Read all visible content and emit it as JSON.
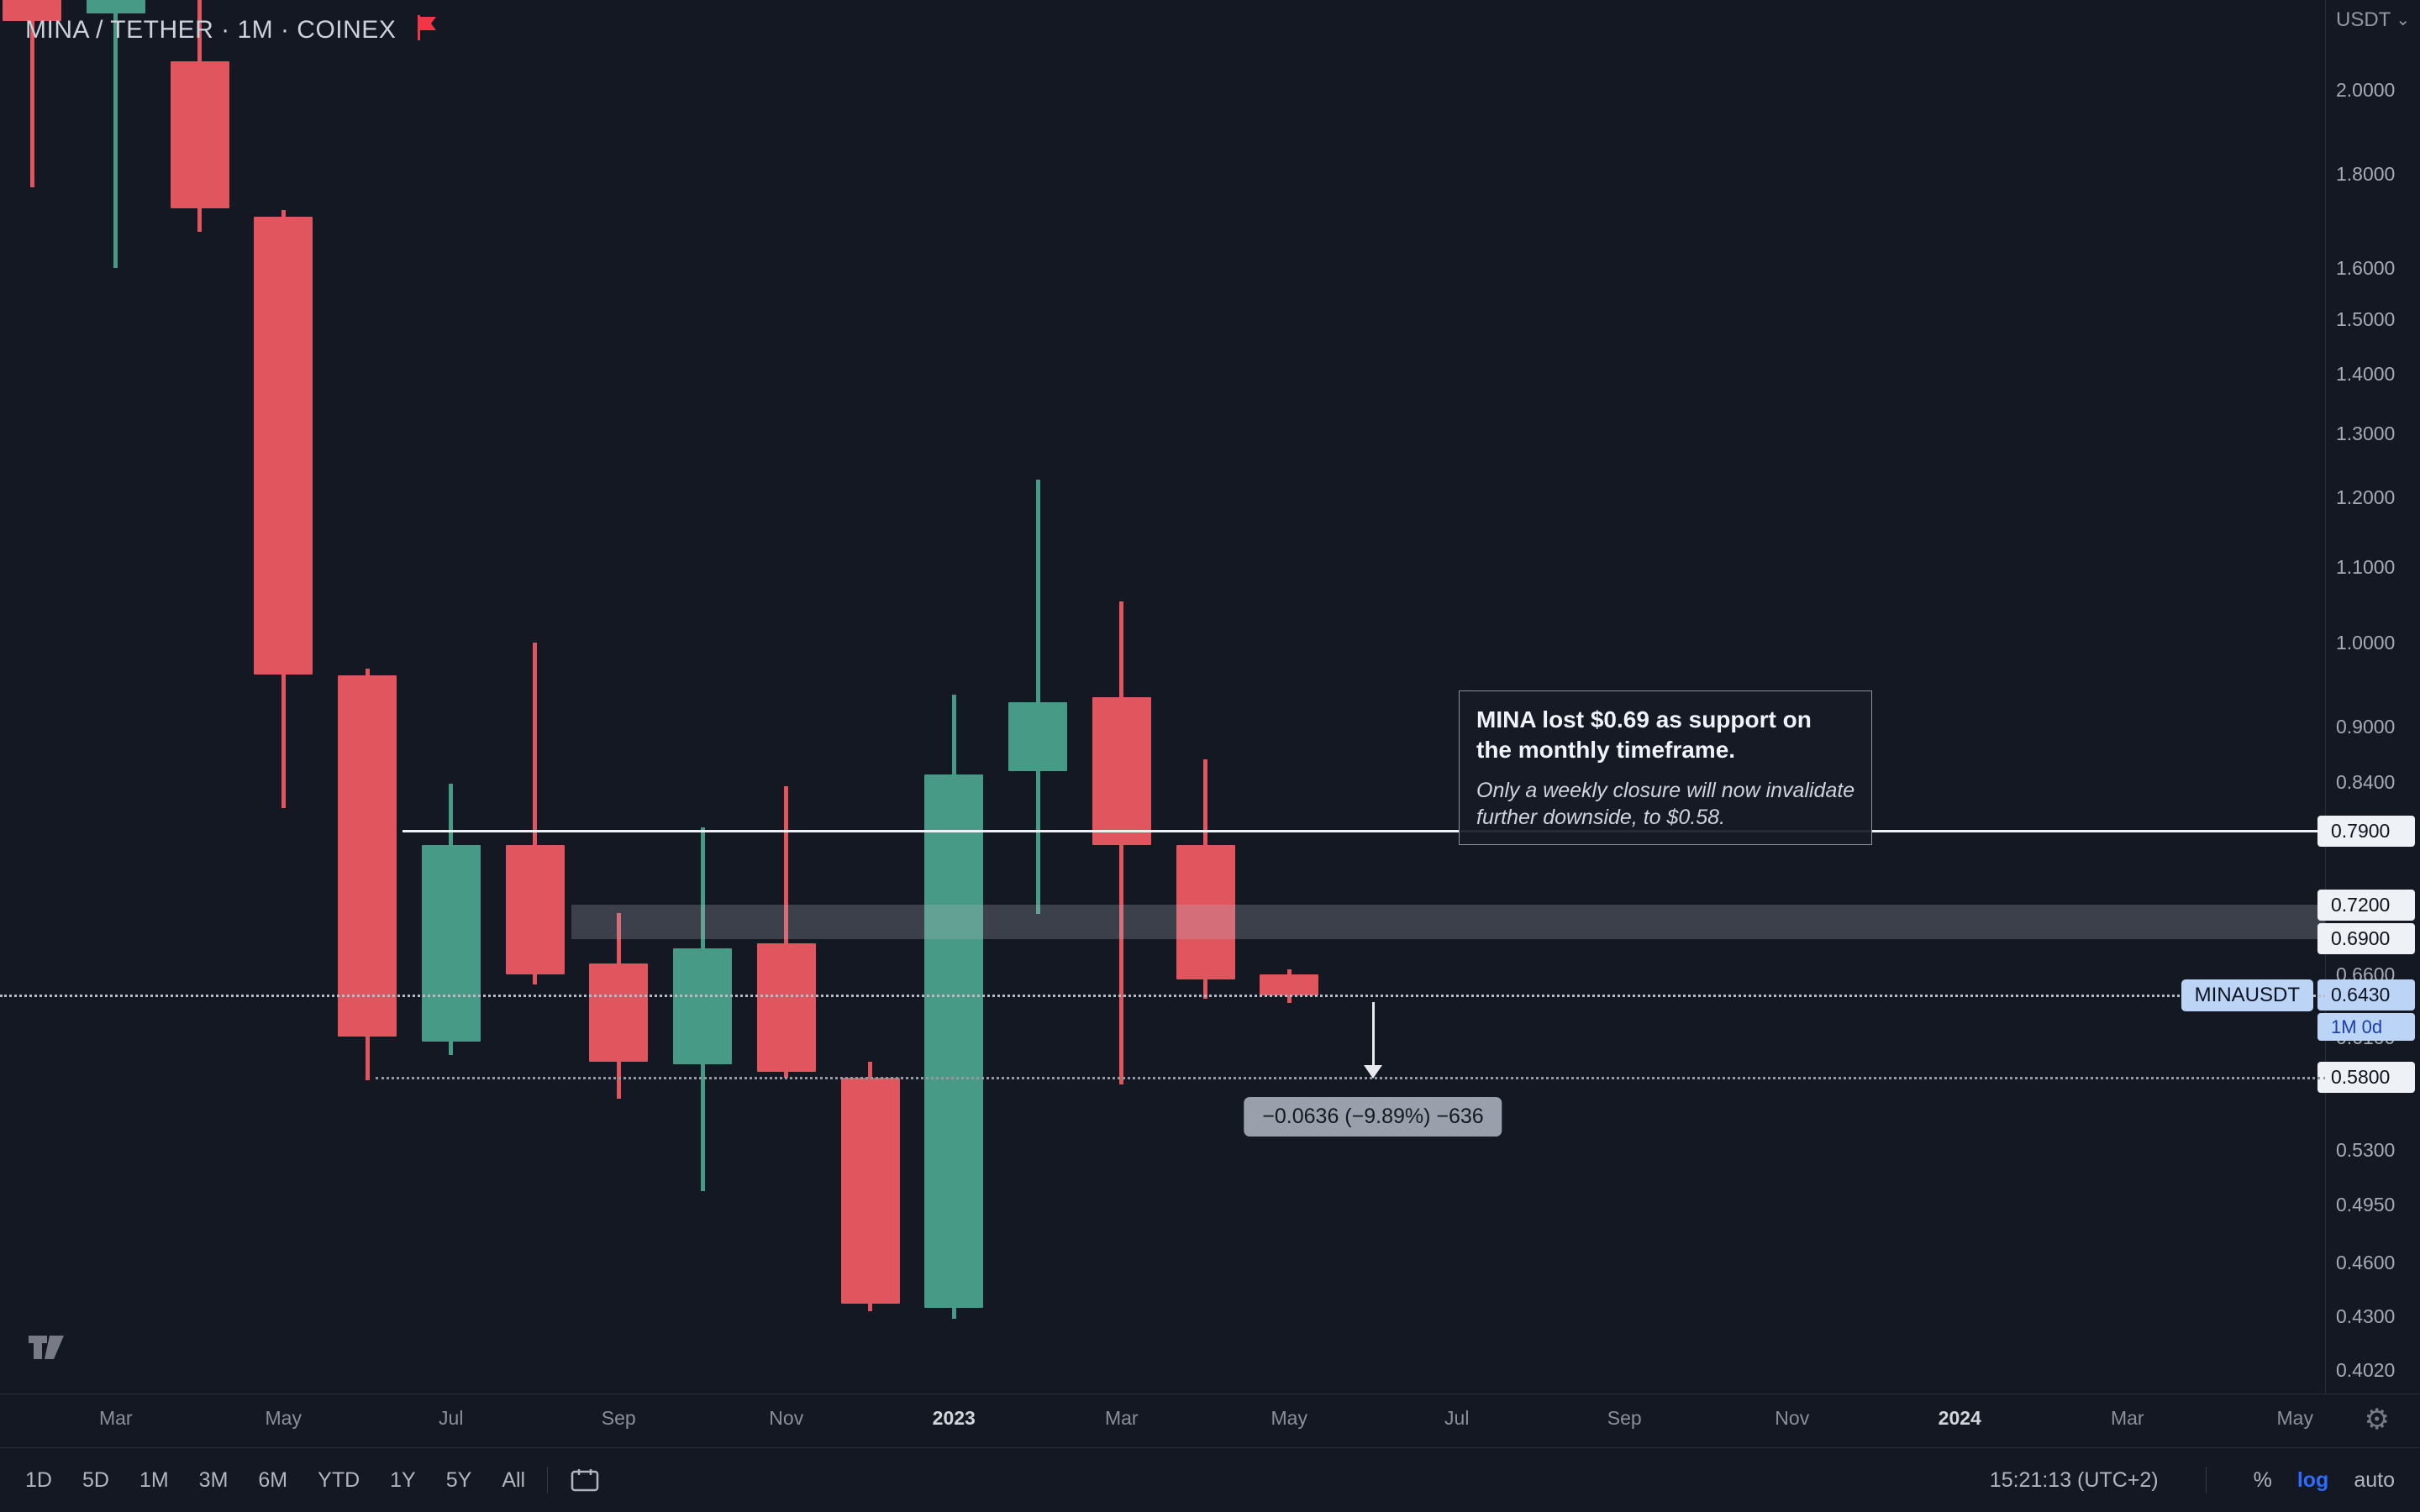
{
  "header": {
    "title": "MINA / TETHER · 1M · COINEX",
    "currency": "USDT"
  },
  "price_axis": {
    "ticks": [
      "2.0000",
      "1.8000",
      "1.6000",
      "1.5000",
      "1.4000",
      "1.3000",
      "1.2000",
      "1.1000",
      "1.0000",
      "0.9000",
      "0.8400",
      "0.6600",
      "0.6100",
      "0.5300",
      "0.4950",
      "0.4600",
      "0.4300",
      "0.4020"
    ],
    "levels": [
      {
        "text": "0.7900",
        "value": 0.79
      },
      {
        "text": "0.7200",
        "value": 0.72
      },
      {
        "text": "0.6900",
        "value": 0.69
      },
      {
        "text": "0.5800",
        "value": 0.58
      }
    ],
    "current": {
      "tag": "MINAUSDT",
      "price": "0.6430",
      "value": 0.643,
      "countdown": "1M 0d"
    }
  },
  "time_axis": {
    "labels": [
      {
        "text": "Mar",
        "slot": 1,
        "major": false
      },
      {
        "text": "May",
        "slot": 3,
        "major": false
      },
      {
        "text": "Jul",
        "slot": 5,
        "major": false
      },
      {
        "text": "Sep",
        "slot": 7,
        "major": false
      },
      {
        "text": "Nov",
        "slot": 9,
        "major": false
      },
      {
        "text": "2023",
        "slot": 11,
        "major": true
      },
      {
        "text": "Mar",
        "slot": 13,
        "major": false
      },
      {
        "text": "May",
        "slot": 15,
        "major": false
      },
      {
        "text": "Jul",
        "slot": 17,
        "major": false
      },
      {
        "text": "Sep",
        "slot": 19,
        "major": false
      },
      {
        "text": "Nov",
        "slot": 21,
        "major": false
      },
      {
        "text": "2024",
        "slot": 23,
        "major": true
      },
      {
        "text": "Mar",
        "slot": 25,
        "major": false
      },
      {
        "text": "May",
        "slot": 27,
        "major": false
      }
    ]
  },
  "toolbar": {
    "ranges": [
      "1D",
      "5D",
      "1M",
      "3M",
      "6M",
      "YTD",
      "1Y",
      "5Y",
      "All"
    ],
    "clock": "15:21:13 (UTC+2)",
    "percent": "%",
    "log": "log",
    "auto": "auto"
  },
  "annotation": {
    "title_1": "MINA lost $0.69 as support on",
    "title_2": "the monthly timeframe.",
    "body_1": "Only a weekly closure will now invalidate",
    "body_2": "further downside, to $0.58."
  },
  "chart_data": {
    "type": "candlestick",
    "title": "MINA / TETHER · 1M · COINEX",
    "pair": "MINAUSDT",
    "interval": "1M",
    "exchange": "COINEX",
    "scale": "log",
    "ylim": [
      0.402,
      2.0
    ],
    "up_color": "#479a85",
    "down_color": "#e1555f",
    "background_color": "#141822",
    "accent_color": "#2962ff",
    "candles": [
      {
        "m": "2022-02",
        "o": 2.32,
        "h": 2.35,
        "l": 1.77,
        "c": 2.18
      },
      {
        "m": "2022-03",
        "o": 2.2,
        "h": 2.55,
        "l": 1.6,
        "c": 2.5
      },
      {
        "m": "2022-04",
        "o": 2.072,
        "h": 2.3,
        "l": 1.674,
        "c": 1.723
      },
      {
        "m": "2022-05",
        "o": 1.706,
        "h": 1.72,
        "l": 0.813,
        "c": 0.961
      },
      {
        "m": "2022-06",
        "o": 0.96,
        "h": 0.968,
        "l": 0.578,
        "c": 0.611
      },
      {
        "m": "2022-07",
        "o": 0.607,
        "h": 0.838,
        "l": 0.597,
        "c": 0.776
      },
      {
        "m": "2022-08",
        "o": 0.776,
        "h": 1.0,
        "l": 0.652,
        "c": 0.66
      },
      {
        "m": "2022-09",
        "o": 0.669,
        "h": 0.713,
        "l": 0.565,
        "c": 0.592
      },
      {
        "m": "2022-10",
        "o": 0.59,
        "h": 0.794,
        "l": 0.503,
        "c": 0.682
      },
      {
        "m": "2022-11",
        "o": 0.686,
        "h": 0.836,
        "l": 0.58,
        "c": 0.584
      },
      {
        "m": "2022-12",
        "o": 0.58,
        "h": 0.592,
        "l": 0.433,
        "c": 0.437
      },
      {
        "m": "2023-01",
        "o": 0.4346,
        "h": 0.937,
        "l": 0.429,
        "c": 0.848
      },
      {
        "m": "2023-02",
        "o": 0.852,
        "h": 1.2264,
        "l": 0.712,
        "c": 0.9285
      },
      {
        "m": "2023-03",
        "o": 0.934,
        "h": 1.053,
        "l": 0.575,
        "c": 0.776
      },
      {
        "m": "2023-04",
        "o": 0.776,
        "h": 0.864,
        "l": 0.64,
        "c": 0.6557
      },
      {
        "m": "2023-05",
        "o": 0.66,
        "h": 0.664,
        "l": 0.637,
        "c": 0.643
      }
    ],
    "levels": [
      {
        "kind": "line",
        "price": 0.79,
        "from_slot": 4.42,
        "color": "#eef1f5"
      },
      {
        "kind": "band",
        "top": 0.72,
        "bottom": 0.69,
        "from_slot": 6.44,
        "color": "rgba(178,183,194,0.26)"
      },
      {
        "kind": "dotted",
        "price": 0.643,
        "from_slot": -0.5,
        "color": "#b7bbc5"
      },
      {
        "kind": "dotted",
        "price": 0.58,
        "from_slot": 4.1,
        "color": "#9599a3"
      }
    ],
    "measure": {
      "slot": 16,
      "from": 0.643,
      "to": 0.5795,
      "label": "−0.0636 (−9.89%) −636"
    }
  }
}
